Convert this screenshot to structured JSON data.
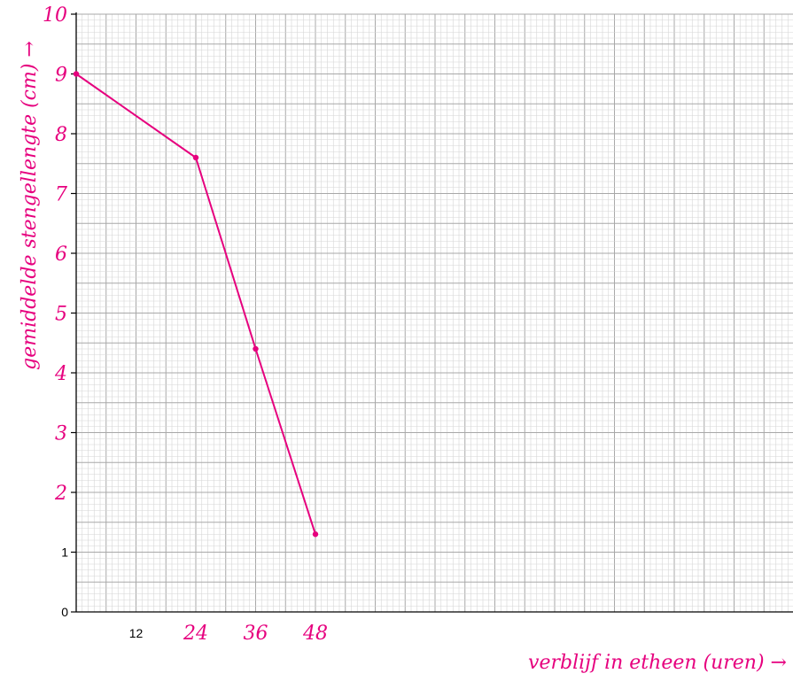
{
  "chart_data": {
    "type": "line",
    "title": "",
    "xlabel": "verblijf in etheen (uren) →",
    "ylabel": "gemiddelde stengellengte (cm) →",
    "xlim": [
      0,
      60
    ],
    "ylim": [
      0,
      10
    ],
    "grid": true,
    "x_ticks": [
      {
        "value": 12,
        "label": "12",
        "style": "print"
      },
      {
        "value": 24,
        "label": "24",
        "style": "hand"
      },
      {
        "value": 36,
        "label": "36",
        "style": "hand"
      },
      {
        "value": 48,
        "label": "48",
        "style": "hand"
      }
    ],
    "y_ticks": [
      {
        "value": 0,
        "label": "0",
        "style": "print"
      },
      {
        "value": 1,
        "label": "1",
        "style": "print"
      },
      {
        "value": 2,
        "label": "2",
        "style": "hand"
      },
      {
        "value": 3,
        "label": "3",
        "style": "hand"
      },
      {
        "value": 4,
        "label": "4",
        "style": "hand"
      },
      {
        "value": 5,
        "label": "5",
        "style": "hand"
      },
      {
        "value": 6,
        "label": "6",
        "style": "hand"
      },
      {
        "value": 7,
        "label": "7",
        "style": "hand"
      },
      {
        "value": 8,
        "label": "8",
        "style": "hand"
      },
      {
        "value": 9,
        "label": "9",
        "style": "hand"
      },
      {
        "value": 10,
        "label": "10",
        "style": "hand"
      }
    ],
    "series": [
      {
        "x": [
          0,
          24,
          36,
          48
        ],
        "y": [
          9.0,
          7.6,
          4.4,
          1.3
        ]
      }
    ],
    "colors": {
      "line": "#e6007e",
      "handwriting": "#e6007e",
      "grid_minor": "#d6d6d6",
      "grid_major": "#a8a8a8",
      "axis": "#000000"
    }
  }
}
